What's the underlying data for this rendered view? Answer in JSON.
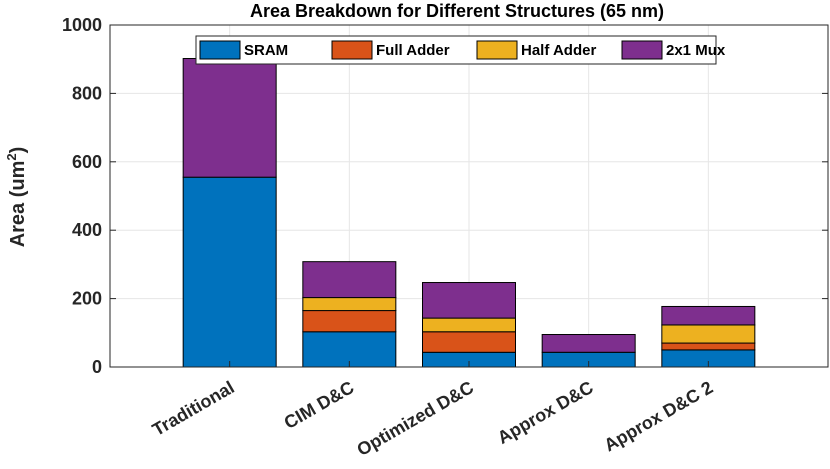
{
  "chart_data": {
    "type": "bar",
    "stacked": true,
    "title": "Area Breakdown for Different Structures (65 nm)",
    "xlabel": "",
    "ylabel": "Area (um",
    "ylabel_superscript": "2",
    "ylabel_suffix": ")",
    "ylim": [
      0,
      1000
    ],
    "yticks": [
      0,
      200,
      400,
      600,
      800,
      1000
    ],
    "grid": true,
    "legend_position": "top",
    "categories": [
      "Traditional",
      "CIM D&C",
      "Optimized D&C",
      "Approx D&C",
      "Approx D&C 2"
    ],
    "series": [
      {
        "name": "SRAM",
        "color": "#0072BD",
        "values": [
          555,
          103,
          43,
          43,
          50
        ]
      },
      {
        "name": "Full Adder",
        "color": "#D95319",
        "values": [
          0,
          62,
          60,
          0,
          20
        ]
      },
      {
        "name": "Half Adder",
        "color": "#EDB120",
        "values": [
          0,
          38,
          40,
          0,
          53
        ]
      },
      {
        "name": "2x1 Mux",
        "color": "#7E2F8E",
        "values": [
          347,
          105,
          104,
          52,
          54
        ]
      }
    ]
  }
}
